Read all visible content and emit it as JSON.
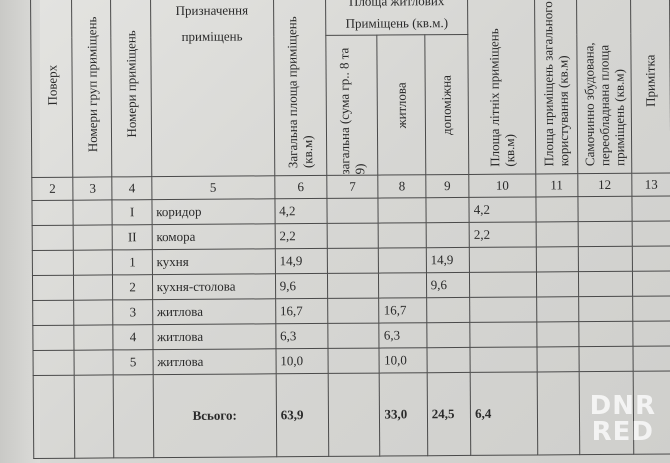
{
  "headers": {
    "c1": "Поверх",
    "c2": "Номери груп приміщень",
    "c3": "Номери приміщень",
    "c4": "Призначення приміщень",
    "c5": "Загальна площа приміщень (кв.м)",
    "group": "Площа житлових Приміщень (кв.м.)",
    "c6": "загальна (сума гр.. 8 та 9)",
    "c7": "житлова",
    "c8": "допоміжна",
    "c9": "Площа літніх приміщень (кв.м)",
    "c10": "Площа приміщень загального користування (кв.м)",
    "c11": "Самочинно збудована, переобладнана площа приміщень (кв.м)",
    "c12": "Примітка"
  },
  "column_numbers": [
    "2",
    "3",
    "4",
    "5",
    "6",
    "7",
    "8",
    "9",
    "10",
    "11",
    "12",
    "13"
  ],
  "rows": [
    {
      "num": "I",
      "name": "коридор",
      "total": "4,2",
      "general": "",
      "living": "",
      "aux": "",
      "summer": "4,2"
    },
    {
      "num": "II",
      "name": "комора",
      "total": "2,2",
      "general": "",
      "living": "",
      "aux": "",
      "summer": "2,2"
    },
    {
      "num": "1",
      "name": "кухня",
      "total": "14,9",
      "general": "",
      "living": "",
      "aux": "14,9",
      "summer": ""
    },
    {
      "num": "2",
      "name": "кухня-столова",
      "total": "9,6",
      "general": "",
      "living": "",
      "aux": "9,6",
      "summer": ""
    },
    {
      "num": "3",
      "name": "житлова",
      "total": "16,7",
      "general": "",
      "living": "16,7",
      "aux": "",
      "summer": ""
    },
    {
      "num": "4",
      "name": "житлова",
      "total": "6,3",
      "general": "",
      "living": "6,3",
      "aux": "",
      "summer": ""
    },
    {
      "num": "5",
      "name": "житлова",
      "total": "10,0",
      "general": "",
      "living": "10,0",
      "aux": "",
      "summer": ""
    }
  ],
  "total": {
    "label": "Всього:",
    "total": "63,9",
    "living": "33,0",
    "aux": "24,5",
    "summer": "6,4"
  },
  "watermark": "DNR RED"
}
